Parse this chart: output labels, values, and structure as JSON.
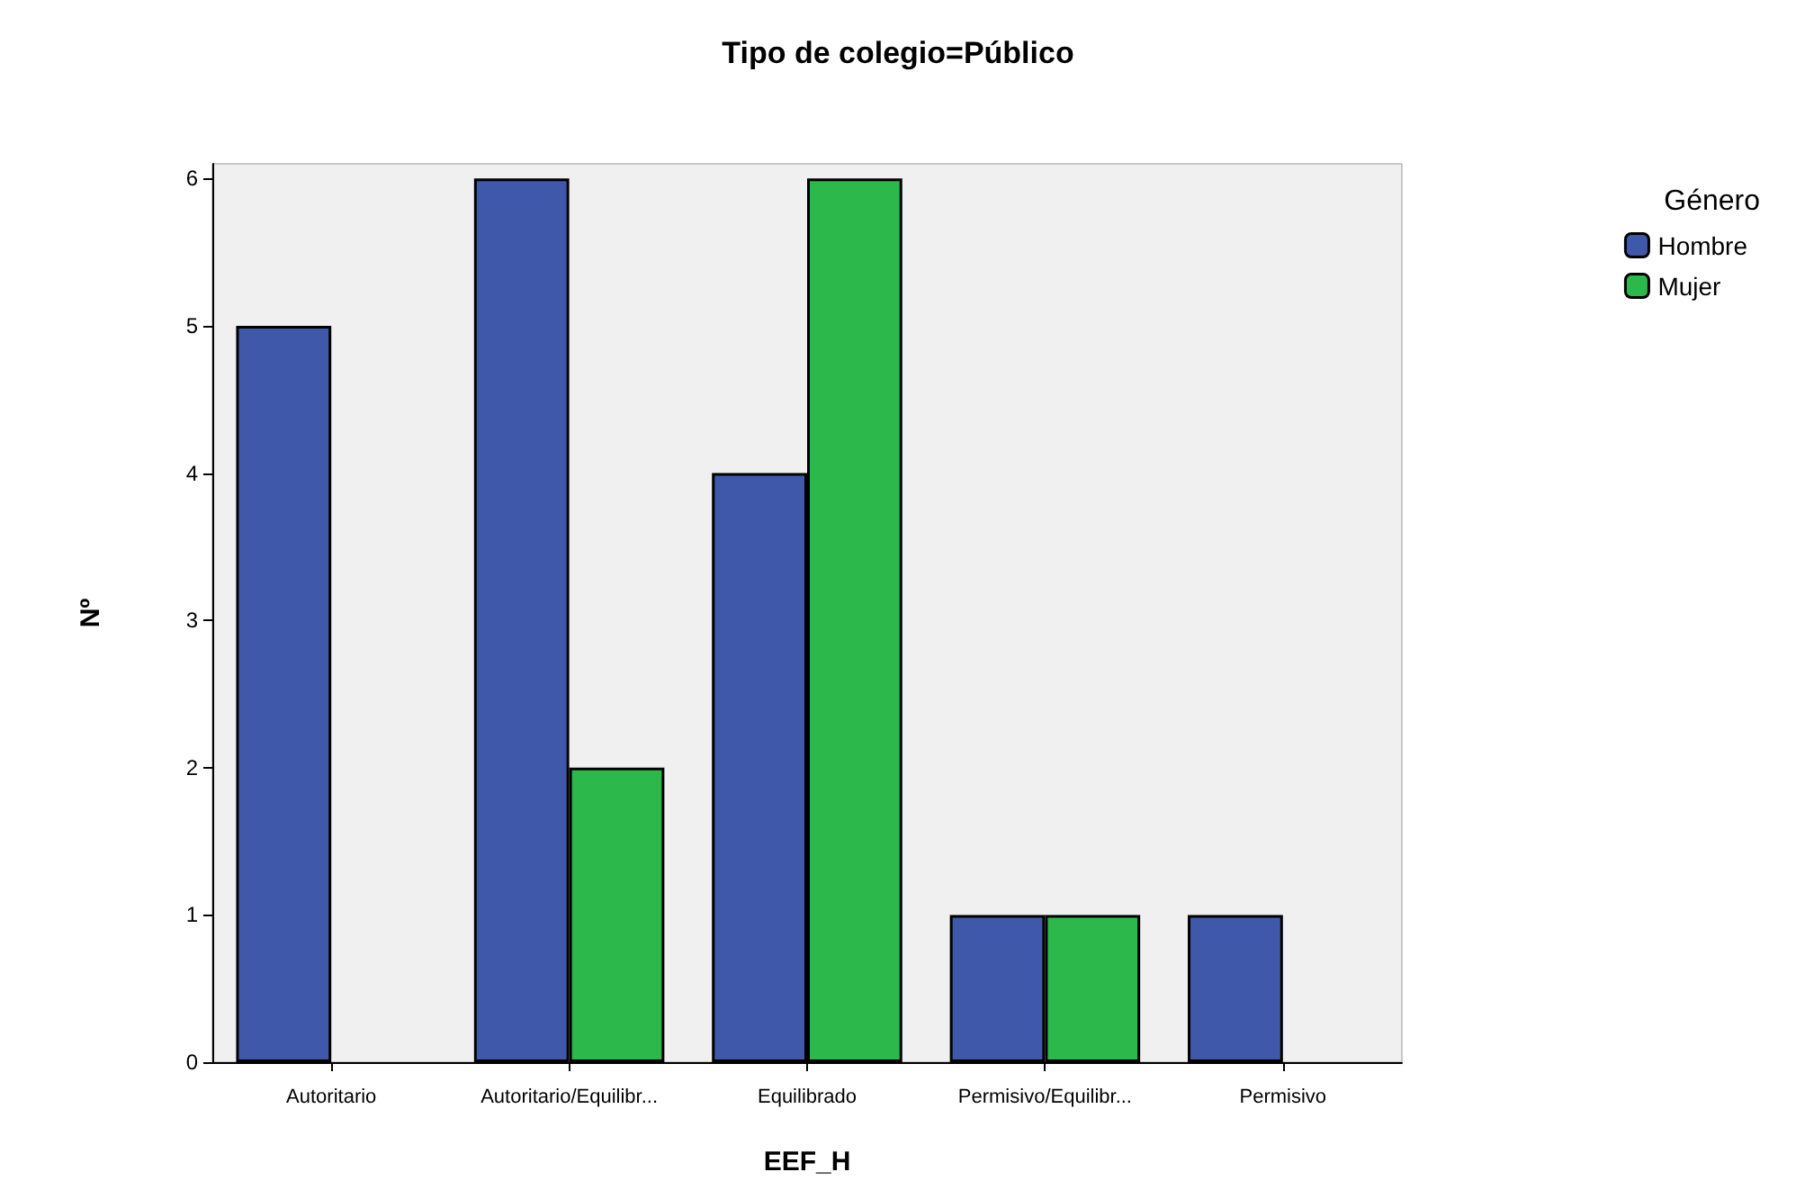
{
  "chart_data": {
    "type": "bar",
    "title": "Tipo de colegio=Público",
    "xlabel": "EEF_H",
    "ylabel": "Nº",
    "legend_title": "Género",
    "categories": [
      "Autoritario",
      "Autoritario/Equilibr...",
      "Equilibrado",
      "Permisivo/Equilibr...",
      "Permisivo"
    ],
    "series": [
      {
        "name": "Hombre",
        "color": "#3f58aa",
        "values": [
          5,
          6,
          4,
          1,
          1
        ]
      },
      {
        "name": "Mujer",
        "color": "#2db84b",
        "values": [
          null,
          2,
          6,
          1,
          null
        ]
      }
    ],
    "ylim": [
      0,
      6.1
    ],
    "yticks": [
      0,
      1,
      2,
      3,
      4,
      5,
      6
    ],
    "grid": false,
    "legend": "top right"
  }
}
